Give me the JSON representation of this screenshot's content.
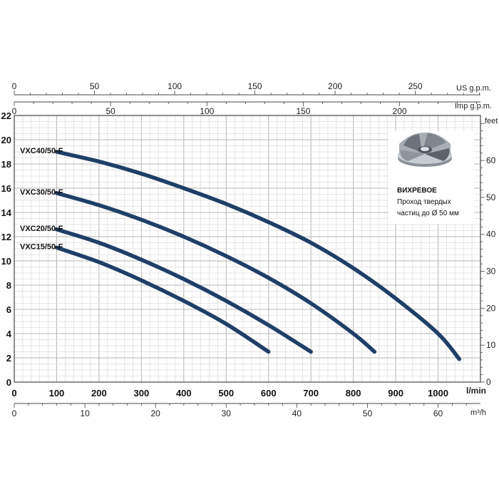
{
  "chart_data": {
    "type": "line",
    "x_unit": "l/min",
    "y_unit_right": "feet",
    "top_axis_us_unit": "US g.p.m.",
    "top_axis_imp_unit": "Imp g.p.m.",
    "bottom_axis_m3h_unit": "m³/h",
    "xlim": [
      0,
      1100
    ],
    "ylim": [
      0,
      22
    ],
    "x_ticks": [
      0,
      100,
      200,
      300,
      400,
      500,
      600,
      700,
      800,
      900,
      1000
    ],
    "y_ticks": [
      0,
      2,
      4,
      6,
      8,
      10,
      12,
      14,
      16,
      18,
      20,
      22
    ],
    "feet_ticks": [
      0,
      10,
      20,
      30,
      40,
      50,
      60
    ],
    "us_gpm_ticks": [
      0,
      50,
      100,
      150,
      200,
      250
    ],
    "imp_gpm_ticks": [
      0,
      50,
      100,
      150,
      200
    ],
    "m3h_ticks": [
      0,
      10,
      20,
      30,
      40,
      50,
      60
    ],
    "grid": true,
    "series": [
      {
        "name": "VXC40/50-F",
        "color": "#1f3f66",
        "x": [
          100,
          200,
          300,
          400,
          500,
          600,
          700,
          800,
          900,
          1000,
          1050
        ],
        "y": [
          19.0,
          18.2,
          17.2,
          16.0,
          14.7,
          13.2,
          11.5,
          9.4,
          6.9,
          4.0,
          1.9
        ]
      },
      {
        "name": "VXC30/50-F",
        "color": "#1f3f66",
        "x": [
          100,
          200,
          300,
          400,
          500,
          600,
          700,
          800,
          850
        ],
        "y": [
          15.6,
          14.6,
          13.4,
          12.0,
          10.4,
          8.6,
          6.5,
          4.0,
          2.5
        ]
      },
      {
        "name": "VXC20/50-F",
        "color": "#1f3f66",
        "x": [
          100,
          200,
          300,
          400,
          500,
          600,
          700
        ],
        "y": [
          12.6,
          11.5,
          10.1,
          8.5,
          6.7,
          4.7,
          2.5
        ]
      },
      {
        "name": "VXC15/50-F",
        "color": "#1f3f66",
        "x": [
          100,
          200,
          300,
          400,
          500,
          600
        ],
        "y": [
          11.1,
          9.9,
          8.4,
          6.7,
          4.8,
          2.5
        ]
      }
    ],
    "insert": {
      "title": "ВИХРЕВОЕ",
      "line1": "Проход твердых",
      "line2": "частиц до Ø 50 мм"
    }
  }
}
